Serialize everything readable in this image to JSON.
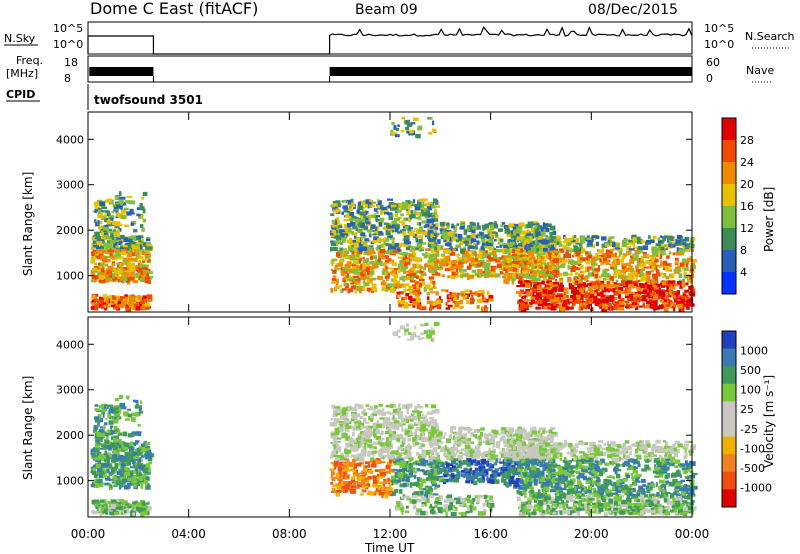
{
  "header": {
    "site": "Dome C East (fitACF)",
    "beam": "Beam 09",
    "date": "08/Dec/2015"
  },
  "nsky_panel": {
    "label": "N.Sky",
    "right_label": "N.Search",
    "left_ticks": [
      "10^5",
      "10^0"
    ],
    "right_ticks": [
      "10^5",
      "10^0"
    ]
  },
  "freq_panel": {
    "label_line1": "Freq.",
    "label_line2": "[MHz]",
    "right_label": "Nave",
    "left_ticks": [
      "18",
      "8"
    ],
    "right_ticks": [
      "60",
      "0"
    ]
  },
  "cpid": {
    "label": "CPID",
    "program": "twofsound 3501"
  },
  "colors": {
    "power": [
      "#0033ff",
      "#2a5fb8",
      "#3c8c5a",
      "#7fbf3f",
      "#e8c000",
      "#f08a00",
      "#ef4a00",
      "#e00000"
    ],
    "velocity": [
      "#2040c0",
      "#3a7ab0",
      "#3f9a5a",
      "#77c83a",
      "#c8c8c0",
      "#c8c8c0",
      "#f0b000",
      "#f08020",
      "#ef5010",
      "#e00000"
    ]
  },
  "chart_data": [
    {
      "type": "heatmap",
      "name": "power",
      "ylabel": "Slant Range [km]",
      "yticks": [
        "1000",
        "2000",
        "3000",
        "4000"
      ],
      "ylim": [
        200,
        4600
      ],
      "xlim": [
        0,
        24
      ],
      "colorbar_label": "Power [dB]",
      "colorbar_ticks": [
        "4",
        "8",
        "12",
        "16",
        "20",
        "24",
        "28"
      ],
      "colorbar_range": [
        0,
        32
      ]
    },
    {
      "type": "heatmap",
      "name": "velocity",
      "ylabel": "Slant Range [km]",
      "yticks": [
        "1000",
        "2000",
        "3000",
        "4000"
      ],
      "ylim": [
        200,
        4600
      ],
      "xlim": [
        0,
        24
      ],
      "xlabel": "Time UT",
      "xticks": [
        "00:00",
        "04:00",
        "08:00",
        "12:00",
        "16:00",
        "20:00",
        "00:00"
      ],
      "colorbar_label": "Velocity [m s⁻¹]",
      "colorbar_ticks": [
        "1000",
        "500",
        "100",
        "25",
        "-25",
        "-100",
        "-500",
        "-1000"
      ]
    }
  ]
}
